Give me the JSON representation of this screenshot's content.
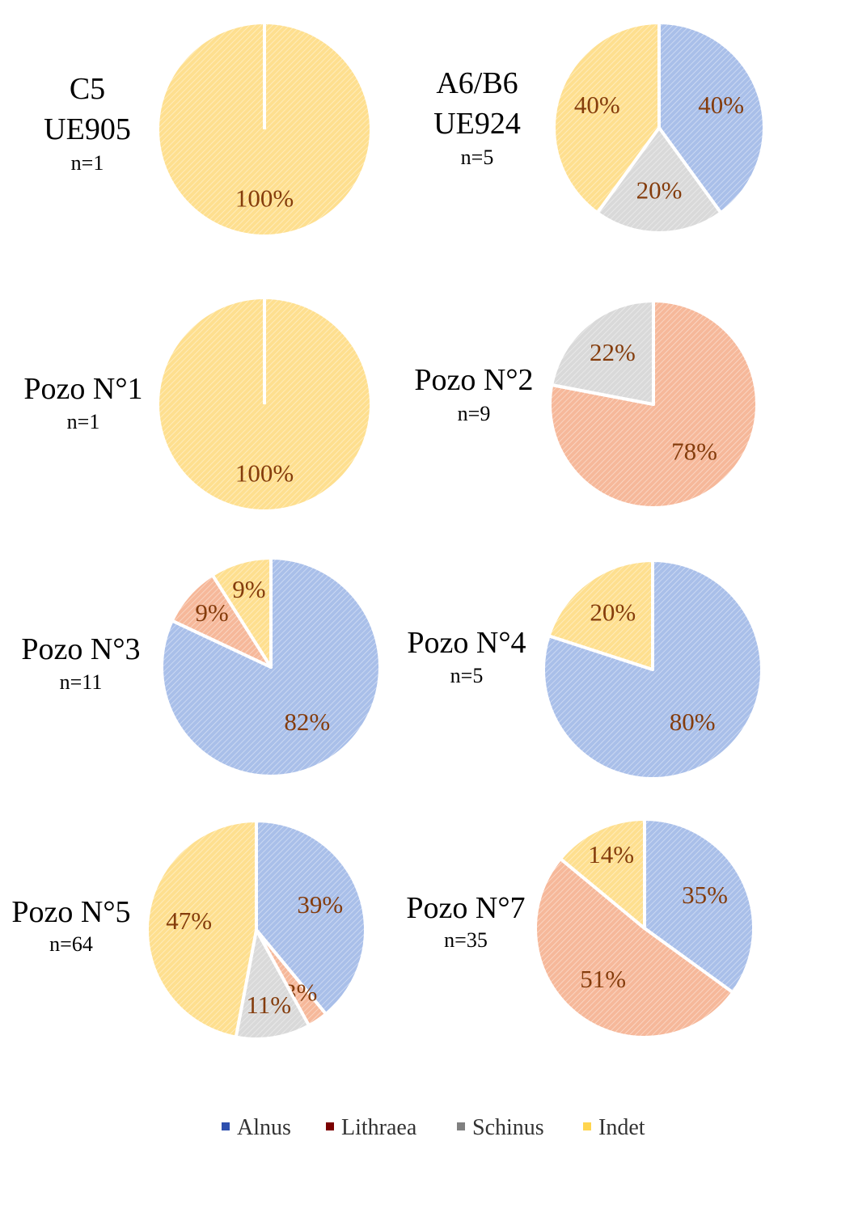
{
  "chart_data": {
    "type": "pie",
    "categories": [
      "Alnus",
      "Lithraea",
      "Schinus",
      "Indet"
    ],
    "colors": {
      "Alnus": "#a9bfe9",
      "Lithraea": "#f6b89a",
      "Schinus": "#d9d9d9",
      "Indet": "#fedf8f"
    },
    "legend_colors": {
      "Alnus": "#2e4fae",
      "Lithraea": "#7b0000",
      "Schinus": "#808080",
      "Indet": "#ffd54f"
    },
    "legend_position": "bottom",
    "charts": [
      {
        "title": [
          "C5",
          "UE905"
        ],
        "n": "n=1",
        "values": [
          0,
          0,
          0,
          100
        ],
        "labels": [
          "",
          "",
          "",
          "100%"
        ]
      },
      {
        "title": [
          "A6/B6",
          "UE924"
        ],
        "n": "n=5",
        "values": [
          40,
          0,
          20,
          40
        ],
        "labels": [
          "40%",
          "",
          "20%",
          "40%"
        ]
      },
      {
        "title": [
          "Pozo N°1"
        ],
        "n": "n=1",
        "values": [
          0,
          0,
          0,
          100
        ],
        "labels": [
          "",
          "",
          "",
          "100%"
        ]
      },
      {
        "title": [
          "Pozo N°2"
        ],
        "n": "n=9",
        "values": [
          0,
          78,
          22,
          0
        ],
        "labels": [
          "",
          "78%",
          "22%",
          ""
        ]
      },
      {
        "title": [
          "Pozo N°3"
        ],
        "n": "n=11",
        "values": [
          82,
          9,
          0,
          9
        ],
        "labels": [
          "82%",
          "9%",
          "",
          "9%"
        ]
      },
      {
        "title": [
          "Pozo N°4"
        ],
        "n": "n=5",
        "values": [
          80,
          0,
          0,
          20
        ],
        "labels": [
          "80%",
          "",
          "",
          "20%"
        ]
      },
      {
        "title": [
          "Pozo N°5"
        ],
        "n": "n=64",
        "values": [
          39,
          3,
          11,
          47
        ],
        "labels": [
          "39%",
          "3%",
          "11%",
          "47%"
        ]
      },
      {
        "title": [
          "Pozo N°7"
        ],
        "n": "n=35",
        "values": [
          35,
          51,
          0,
          14
        ],
        "labels": [
          "35%",
          "51%",
          "",
          "14%"
        ]
      }
    ]
  }
}
